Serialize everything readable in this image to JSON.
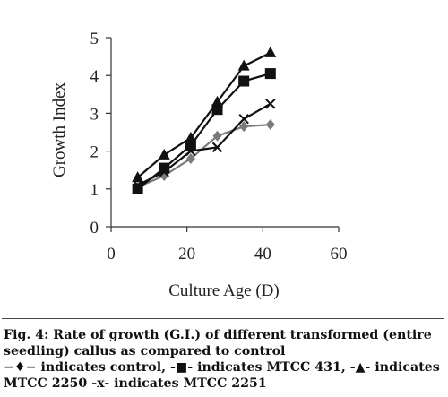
{
  "chart_data": {
    "type": "line",
    "xlabel": "Culture Age (D)",
    "ylabel": "Growth Index",
    "xlim": [
      0,
      60
    ],
    "ylim": [
      0,
      5
    ],
    "xticks": [
      0,
      20,
      40,
      60
    ],
    "yticks": [
      0,
      1,
      2,
      3,
      4,
      5
    ],
    "grid": false,
    "series": [
      {
        "name": "control",
        "marker": "diamond",
        "color": "#7a7a7a",
        "x": [
          7,
          14,
          21,
          28,
          35,
          42
        ],
        "y": [
          1.05,
          1.35,
          1.8,
          2.4,
          2.65,
          2.7
        ]
      },
      {
        "name": "MTCC 431",
        "marker": "square",
        "color": "#111111",
        "x": [
          7,
          14,
          21,
          28,
          35,
          42
        ],
        "y": [
          1.0,
          1.55,
          2.15,
          3.1,
          3.85,
          4.05
        ]
      },
      {
        "name": "MTCC 2250",
        "marker": "triangle",
        "color": "#111111",
        "x": [
          7,
          14,
          21,
          28,
          35,
          42
        ],
        "y": [
          1.3,
          1.9,
          2.35,
          3.3,
          4.25,
          4.6
        ]
      },
      {
        "name": "MTCC 2251",
        "marker": "x",
        "color": "#111111",
        "x": [
          7,
          14,
          21,
          28,
          35,
          42
        ],
        "y": [
          1.1,
          1.45,
          2.0,
          2.1,
          2.85,
          3.25
        ]
      }
    ]
  },
  "caption": {
    "line1": "Fig. 4: Rate of growth (G.I.) of different transformed (entire",
    "line2": "seedling) callus as compared to control",
    "legend": {
      "control_symbol": "−♦−",
      "control_text": " indicates control, ",
      "mtcc431_symbol": "-■-",
      "mtcc431_text": " indicates MTCC 431, ",
      "mtcc2250_symbol": "-▲-",
      "mtcc2250_text": " indicates",
      "mtcc2250_label": "MTCC 2250 ",
      "mtcc2251_symbol": "-x-",
      "mtcc2251_text": " indicates MTCC 2251"
    }
  }
}
